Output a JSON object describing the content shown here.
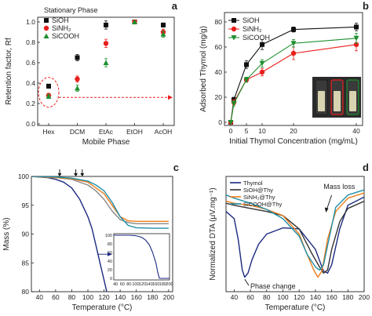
{
  "panel_labels": {
    "a": "a",
    "b": "b",
    "c": "c",
    "d": "d"
  },
  "chart_data": [
    {
      "panel": "a",
      "type": "scatter",
      "xlabel": "Mobile Phase",
      "ylabel": "Retention factor, Rf",
      "legend_title": "Stationary Phase",
      "legend_position": "top-left",
      "categories": [
        "Hex",
        "DCM",
        "EtAc",
        "EtOH",
        "AcOH"
      ],
      "ylim": [
        0,
        1
      ],
      "yticks": [
        "0.0",
        "0.2",
        "0.4",
        "0.6",
        "0.8",
        "1.0"
      ],
      "series": [
        {
          "name": "SiOH",
          "color": "#111111",
          "marker": "square",
          "values": [
            0.37,
            0.65,
            0.97,
            1.0,
            0.97
          ],
          "errors": [
            0.02,
            0.03,
            0.04,
            0.0,
            0.02
          ]
        },
        {
          "name": "SiNH₂",
          "color": "#e8201c",
          "marker": "circle",
          "values": [
            0.28,
            0.44,
            0.79,
            1.0,
            0.9
          ],
          "errors": [
            0.02,
            0.03,
            0.04,
            0.0,
            0.03
          ]
        },
        {
          "name": "SiCOOH",
          "color": "#1e8f2e",
          "marker": "triangle",
          "values": [
            0.27,
            0.35,
            0.6,
            1.0,
            0.88
          ],
          "errors": [
            0.02,
            0.03,
            0.04,
            0.0,
            0.03
          ]
        }
      ],
      "annotation": "dashed-ellipse-and-arrow"
    },
    {
      "panel": "b",
      "type": "line",
      "xlabel": "Initial Thymol Concentration (mg/mL)",
      "ylabel": "Adsorbed Thymol (mg/g)",
      "legend_position": "top-left",
      "xlim": [
        -2,
        42
      ],
      "ylim": [
        0,
        80
      ],
      "xticks": [
        0,
        5,
        10,
        20,
        40
      ],
      "yticks": [
        0,
        20,
        40,
        60,
        80
      ],
      "series": [
        {
          "name": "SiOH",
          "color": "#111111",
          "marker": "square",
          "x": [
            0,
            1,
            5,
            10,
            20,
            40
          ],
          "values": [
            0,
            18,
            46,
            62,
            74,
            76
          ],
          "errors": [
            0,
            2,
            3,
            4,
            2,
            3
          ]
        },
        {
          "name": "SiNH₂",
          "color": "#e8201c",
          "marker": "circle",
          "x": [
            0,
            1,
            5,
            10,
            20,
            40
          ],
          "values": [
            0,
            16,
            34,
            40,
            55,
            62
          ],
          "errors": [
            0,
            2,
            2,
            3,
            5,
            5
          ]
        },
        {
          "name": "SiCOOH",
          "color": "#1e8f2e",
          "marker": "triangle-down",
          "x": [
            0,
            1,
            5,
            10,
            20,
            40
          ],
          "values": [
            0,
            15,
            34,
            47,
            63,
            67
          ],
          "errors": [
            0,
            2,
            2,
            3,
            3,
            4
          ]
        }
      ]
    },
    {
      "panel": "c",
      "type": "line",
      "xlabel": "Temperature (°C)",
      "ylabel": "Mass (%)",
      "xlim": [
        30,
        205
      ],
      "ylim": [
        80,
        100
      ],
      "xticks": [
        40,
        60,
        80,
        100,
        120,
        140,
        160,
        180,
        200
      ],
      "yticks": [
        80,
        85,
        90,
        95,
        100
      ],
      "arrow_markers_x": [
        65,
        85,
        93
      ],
      "series": [
        {
          "name": "Thymol",
          "color": "#1c2a80",
          "x": [
            30,
            50,
            60,
            70,
            80,
            90,
            100,
            105,
            110,
            115,
            120,
            125
          ],
          "values": [
            100,
            99.8,
            99.5,
            99,
            98,
            96,
            93,
            91,
            88,
            85,
            82,
            79
          ]
        },
        {
          "name": "SiOH@Thy",
          "color": "#888888",
          "x": [
            30,
            60,
            80,
            100,
            110,
            120,
            130,
            140,
            150,
            160,
            180,
            200
          ],
          "values": [
            100,
            99.8,
            99.5,
            98.5,
            97.5,
            96,
            94,
            92.5,
            92,
            91.8,
            91.8,
            91.8
          ]
        },
        {
          "name": "SiNH₂@Thy",
          "color": "#ef7d1a",
          "x": [
            30,
            60,
            80,
            100,
            110,
            120,
            130,
            140,
            150,
            160,
            180,
            200
          ],
          "values": [
            100,
            99.8,
            99.6,
            99,
            98,
            97,
            95,
            93,
            92.3,
            92.2,
            92.2,
            92.2
          ]
        },
        {
          "name": "SiCOOH@Thy",
          "color": "#1f8fa8",
          "x": [
            30,
            60,
            80,
            100,
            110,
            120,
            130,
            140,
            150,
            160,
            180,
            200
          ],
          "values": [
            100,
            99.9,
            99.7,
            99.2,
            98.5,
            97.5,
            95.5,
            93,
            91.5,
            91.1,
            91,
            91
          ]
        }
      ],
      "inset": {
        "xlim": [
          35,
          200
        ],
        "ylim": [
          0,
          100
        ],
        "xticks": [
          40,
          60,
          80,
          100,
          120,
          140,
          160,
          180,
          200
        ],
        "yticks": [
          0,
          20,
          40,
          60,
          80,
          100
        ],
        "x": [
          35,
          60,
          80,
          100,
          110,
          120,
          130,
          140,
          150,
          160,
          165,
          170,
          200
        ],
        "values": [
          100,
          100,
          100,
          99,
          97,
          94,
          88,
          78,
          60,
          35,
          15,
          0,
          0
        ]
      }
    },
    {
      "panel": "d",
      "type": "line",
      "xlabel": "Temperature (°C)",
      "ylabel": "Normalized DTA (μV.mg⁻¹)",
      "xlim": [
        30,
        200
      ],
      "xticks": [
        40,
        60,
        80,
        100,
        120,
        140,
        160,
        180,
        200
      ],
      "legend_position": "top-left",
      "annotations": [
        "Mass loss",
        "Phase change"
      ],
      "series": [
        {
          "name": "Thymol",
          "color": "#1c2a80",
          "x": [
            30,
            40,
            45,
            50,
            53,
            57,
            62,
            70,
            80,
            100,
            120,
            140,
            150,
            155,
            160,
            170,
            180,
            200
          ],
          "values": [
            0.72,
            0.65,
            0.45,
            0.15,
            0.08,
            0.12,
            0.25,
            0.4,
            0.5,
            0.56,
            0.55,
            0.35,
            0.14,
            0.12,
            0.2,
            0.55,
            0.78,
            0.86
          ]
        },
        {
          "name": "SiOH@Thy",
          "color": "#333333",
          "x": [
            30,
            40,
            60,
            80,
            100,
            120,
            135,
            145,
            150,
            155,
            160,
            170,
            180,
            200
          ],
          "values": [
            0.8,
            0.78,
            0.75,
            0.72,
            0.68,
            0.55,
            0.32,
            0.18,
            0.12,
            0.15,
            0.35,
            0.62,
            0.75,
            0.82
          ]
        },
        {
          "name": "SiNH₂@Thy",
          "color": "#ef7d1a",
          "x": [
            30,
            40,
            60,
            80,
            100,
            120,
            130,
            138,
            143,
            148,
            155,
            165,
            180,
            200
          ],
          "values": [
            0.82,
            0.8,
            0.78,
            0.74,
            0.68,
            0.5,
            0.3,
            0.15,
            0.08,
            0.14,
            0.45,
            0.72,
            0.85,
            0.9
          ]
        },
        {
          "name": "SiCOOH@Thy",
          "color": "#1f8fa8",
          "x": [
            30,
            40,
            60,
            80,
            100,
            120,
            130,
            140,
            145,
            150,
            158,
            165,
            180,
            200
          ],
          "values": [
            0.88,
            0.85,
            0.8,
            0.74,
            0.65,
            0.48,
            0.3,
            0.18,
            0.15,
            0.2,
            0.5,
            0.76,
            0.88,
            0.93
          ]
        }
      ]
    }
  ]
}
